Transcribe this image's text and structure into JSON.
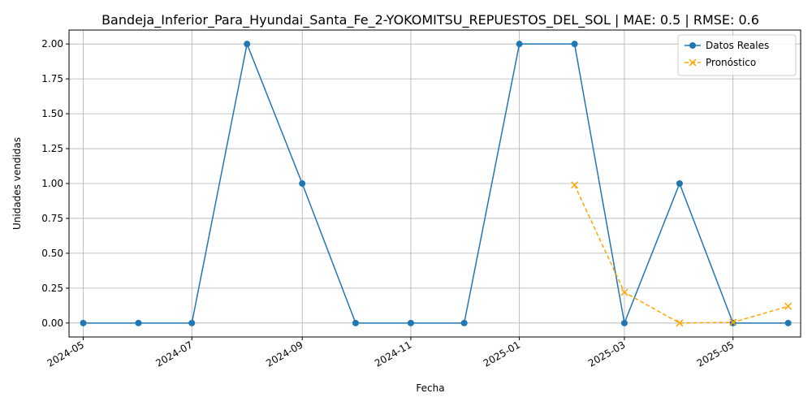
{
  "chart_data": {
    "type": "line",
    "title": "Bandeja_Inferior_Para_Hyundai_Santa_Fe_2-YOKOMITSU_REPUESTOS_DEL_SOL | MAE: 0.5 | RMSE: 0.6",
    "xlabel": "Fecha",
    "ylabel": "Unidades vendidas",
    "ylim": [
      -0.1,
      2.1
    ],
    "xlim": [
      "2024-04-23",
      "2025-06-08"
    ],
    "grid": true,
    "legend_position": "top-right",
    "x_ticks": [
      "2024-05",
      "2024-07",
      "2024-09",
      "2024-11",
      "2025-01",
      "2025-03",
      "2025-05"
    ],
    "y_ticks": [
      "0.00",
      "0.25",
      "0.50",
      "0.75",
      "1.00",
      "1.25",
      "1.50",
      "1.75",
      "2.00"
    ],
    "series": [
      {
        "name": "Datos Reales",
        "color": "#1f77b4",
        "marker": "circle",
        "line_style": "solid",
        "x": [
          "2024-05-01",
          "2024-06-01",
          "2024-07-01",
          "2024-08-01",
          "2024-09-01",
          "2024-10-01",
          "2024-11-01",
          "2024-12-01",
          "2025-01-01",
          "2025-02-01",
          "2025-03-01",
          "2025-04-01",
          "2025-05-01",
          "2025-06-01"
        ],
        "y": [
          0,
          0,
          0,
          2,
          1,
          0,
          0,
          0,
          2,
          2,
          0,
          1,
          0,
          0
        ]
      },
      {
        "name": "Pronóstico",
        "color": "#ffa500",
        "marker": "x",
        "line_style": "dashed",
        "x": [
          "2025-02-01",
          "2025-03-01",
          "2025-04-01",
          "2025-05-01",
          "2025-06-01"
        ],
        "y": [
          0.99,
          0.22,
          0.0,
          0.005,
          0.12
        ]
      }
    ]
  }
}
